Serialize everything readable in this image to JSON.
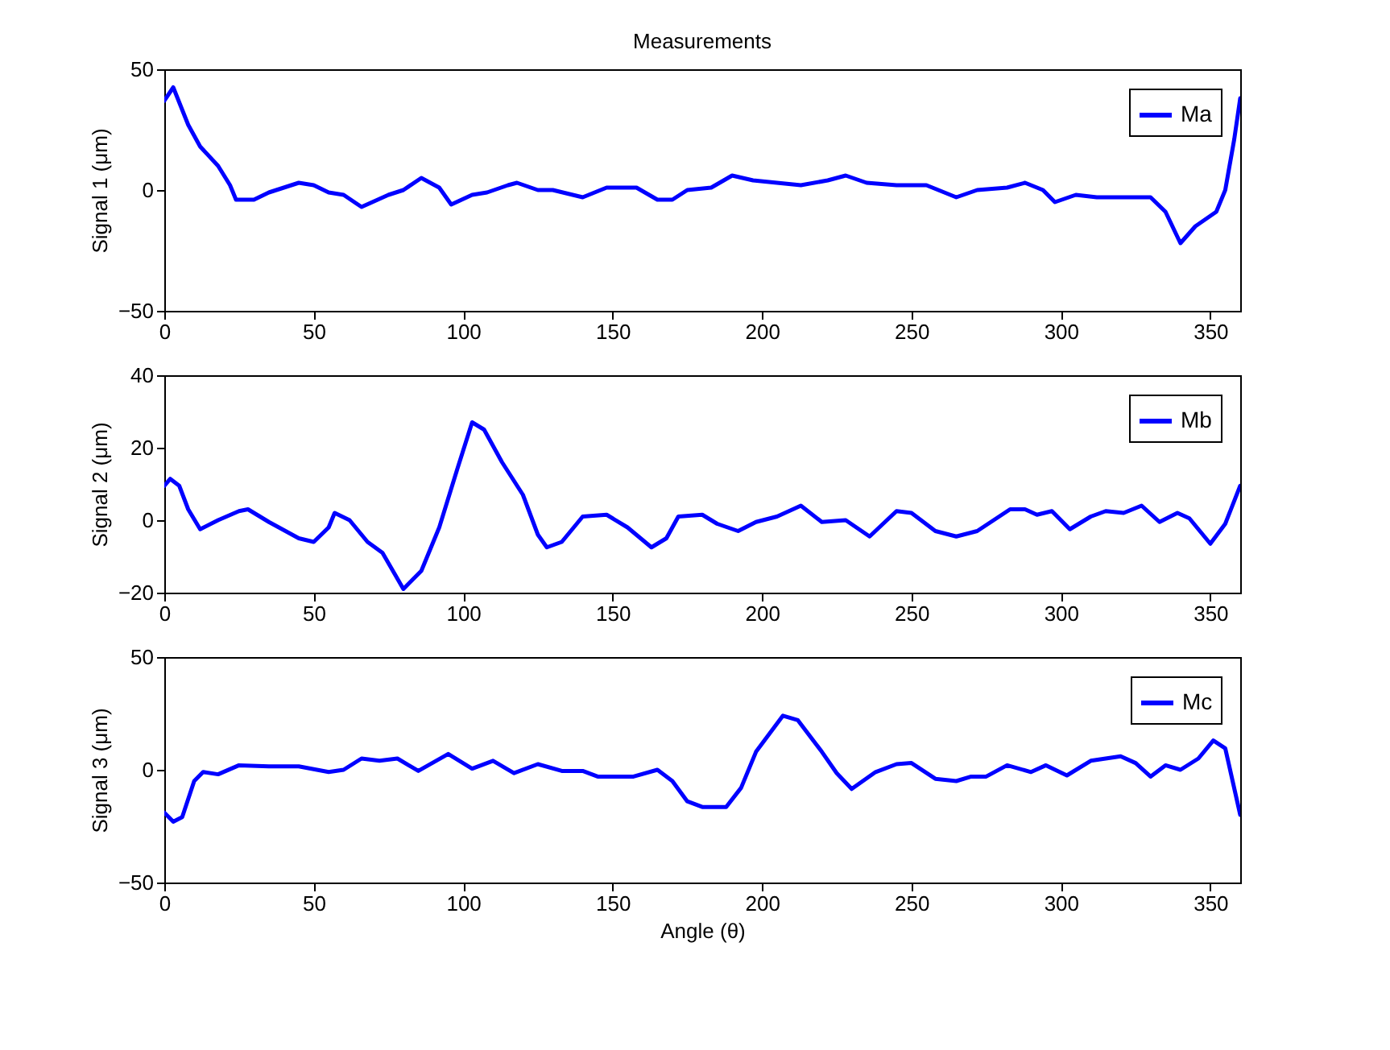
{
  "chart_data": [
    {
      "type": "line",
      "title": "Measurements",
      "ylabel": "Signal 1 (μm)",
      "xlim": [
        0,
        360
      ],
      "xticks": [
        0,
        50,
        100,
        150,
        200,
        250,
        300,
        350
      ],
      "ylim": [
        -50,
        50
      ],
      "yticks": [
        -50,
        0,
        50
      ],
      "grid": false,
      "legend": "top right",
      "x": [
        0,
        3,
        8,
        12,
        18,
        22,
        24,
        30,
        35,
        45,
        50,
        55,
        60,
        66,
        75,
        80,
        86,
        92,
        96,
        103,
        108,
        115,
        118,
        125,
        130,
        140,
        148,
        158,
        165,
        170,
        175,
        183,
        190,
        197,
        205,
        213,
        222,
        228,
        235,
        245,
        255,
        265,
        272,
        282,
        288,
        294,
        298,
        305,
        312,
        320,
        330,
        335,
        340,
        345,
        352,
        355,
        358,
        360
      ],
      "series": [
        {
          "name": "Ma",
          "color": "#0000ff",
          "values": [
            37,
            42.5,
            27,
            18,
            10,
            2,
            -4,
            -4,
            -1,
            3,
            2,
            -1,
            -2,
            -7,
            -2,
            0,
            5,
            1,
            -6,
            -2,
            -1,
            2,
            3,
            0,
            0,
            -3,
            1,
            1,
            -4,
            -4,
            0,
            1,
            6,
            4,
            3,
            2,
            4,
            6,
            3,
            2,
            2,
            -3,
            0,
            1,
            3,
            0,
            -5,
            -2,
            -3,
            -3,
            -3,
            -9,
            -22,
            -15,
            -9,
            0,
            21,
            38
          ]
        }
      ]
    },
    {
      "type": "line",
      "ylabel": "Signal 2 (μm)",
      "xlim": [
        0,
        360
      ],
      "xticks": [
        0,
        50,
        100,
        150,
        200,
        250,
        300,
        350
      ],
      "ylim": [
        -20,
        40
      ],
      "yticks": [
        -20,
        0,
        20,
        40
      ],
      "grid": false,
      "legend": "top right",
      "x": [
        0,
        2,
        5,
        8,
        12,
        18,
        25,
        28,
        35,
        45,
        50,
        55,
        57,
        62,
        68,
        73,
        80,
        86,
        92,
        98,
        103,
        107,
        113,
        120,
        125,
        128,
        133,
        140,
        148,
        155,
        163,
        168,
        172,
        180,
        185,
        192,
        198,
        205,
        213,
        220,
        228,
        236,
        245,
        250,
        258,
        265,
        272,
        283,
        288,
        292,
        297,
        303,
        310,
        315,
        321,
        327,
        333,
        339,
        343,
        350,
        355,
        360
      ],
      "series": [
        {
          "name": "Mb",
          "color": "#0000ff",
          "values": [
            9.5,
            11.4,
            9.5,
            3,
            -2.5,
            0,
            2.5,
            3,
            -0.5,
            -5,
            -6,
            -2,
            2,
            0,
            -6,
            -9,
            -19,
            -14,
            -2,
            14,
            27,
            25,
            16,
            7,
            -4,
            -7.5,
            -6,
            1,
            1.5,
            -2,
            -7.5,
            -5,
            1,
            1.5,
            -1,
            -3,
            -0.5,
            1,
            4,
            -0.5,
            0,
            -4.5,
            2.5,
            2,
            -3,
            -4.5,
            -3,
            3,
            3,
            1.5,
            2.5,
            -2.5,
            1,
            2.5,
            2,
            4,
            -0.5,
            2,
            0.5,
            -6.5,
            -1,
            9.5
          ]
        }
      ]
    },
    {
      "type": "line",
      "ylabel": "Signal 3 (μm)",
      "xlabel": "Angle (θ)",
      "xlim": [
        0,
        360
      ],
      "xticks": [
        0,
        50,
        100,
        150,
        200,
        250,
        300,
        350
      ],
      "ylim": [
        -50,
        50
      ],
      "yticks": [
        -50,
        0,
        50
      ],
      "grid": false,
      "legend": "top right",
      "x": [
        0,
        3,
        6,
        10,
        13,
        18,
        25,
        35,
        45,
        55,
        60,
        66,
        72,
        78,
        85,
        95,
        103,
        110,
        117,
        125,
        133,
        140,
        145,
        157,
        165,
        170,
        175,
        180,
        188,
        193,
        198,
        207,
        212,
        220,
        225,
        230,
        238,
        245,
        250,
        258,
        265,
        270,
        275,
        282,
        290,
        295,
        302,
        310,
        320,
        325,
        330,
        335,
        340,
        346,
        351,
        355,
        360
      ],
      "series": [
        {
          "name": "Mc",
          "color": "#0000ff",
          "values": [
            -19,
            -23,
            -21,
            -5,
            -1,
            -2,
            2,
            1.5,
            1.5,
            -1,
            0,
            5,
            4,
            5,
            -0.5,
            7,
            0.5,
            4,
            -1.5,
            2.5,
            -0.5,
            -0.5,
            -3,
            -3,
            0,
            -5,
            -14,
            -16.5,
            -16.5,
            -8,
            8,
            24,
            22,
            8,
            -1.5,
            -8.5,
            -1,
            2.5,
            3,
            -4,
            -5,
            -3,
            -3,
            2,
            -1,
            2,
            -2.5,
            4,
            6,
            3,
            -3,
            2,
            0,
            5,
            13,
            9.5,
            -20
          ]
        }
      ]
    }
  ]
}
